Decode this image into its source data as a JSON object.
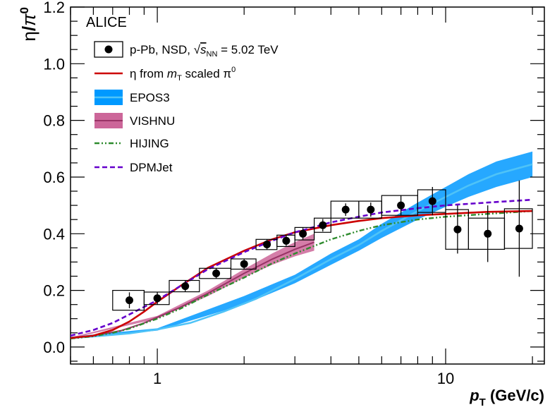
{
  "chart_data": {
    "type": "line",
    "experiment_label": "ALICE",
    "xlabel": {
      "main": "p",
      "sub": "T",
      "unit": "(GeV/c)"
    },
    "ylabel": {
      "num": "η",
      "den": "π",
      "den_sup": "0"
    },
    "x_scale": "log",
    "xlim": [
      0.5,
      22
    ],
    "ylim": [
      -0.06,
      1.2
    ],
    "x_ticks": [
      {
        "value": 1,
        "label": "1"
      },
      {
        "value": 10,
        "label": "10"
      }
    ],
    "y_ticks": [
      {
        "value": 0.0,
        "label": "0.0"
      },
      {
        "value": 0.2,
        "label": "0.2"
      },
      {
        "value": 0.4,
        "label": "0.4"
      },
      {
        "value": 0.6,
        "label": "0.6"
      },
      {
        "value": 0.8,
        "label": "0.8"
      },
      {
        "value": 1.0,
        "label": "1.0"
      },
      {
        "value": 1.2,
        "label": "1.2"
      }
    ],
    "legend": {
      "data": "p-Pb, NSD, √s_NN = 5.02 TeV",
      "data_parts": {
        "pre": "p-Pb, NSD, ",
        "s": "s",
        "sub": "NN",
        "post": " = 5.02 TeV"
      },
      "mt": "η from m_T scaled π⁰",
      "mt_parts": {
        "pre": "η from ",
        "m": "m",
        "sub": "T",
        "post": " scaled π",
        "sup": "0"
      },
      "epos": "EPOS3",
      "vishnu": "VISHNU",
      "hijing": "HIJING",
      "dpmjet": "DPMJet"
    },
    "colors": {
      "data": "#000000",
      "mt": "#cc0000",
      "epos_line": "#4fc3f7",
      "epos_band": "#0099ff",
      "vishnu_line": "#993366",
      "vishnu_band": "#cc6699",
      "hijing": "#2e8b2e",
      "dpmjet": "#6600cc"
    },
    "series": [
      {
        "key": "data",
        "name": "p-Pb, NSD, √s_NN = 5.02 TeV",
        "points": [
          {
            "x": 0.8,
            "y": 0.165,
            "stat": 0.028,
            "sys": 0.035,
            "xlo": 0.7,
            "xhi": 0.9
          },
          {
            "x": 1.0,
            "y": 0.172,
            "stat": 0.022,
            "sys": 0.022,
            "xlo": 0.9,
            "xhi": 1.1
          },
          {
            "x": 1.25,
            "y": 0.215,
            "stat": 0.02,
            "sys": 0.02,
            "xlo": 1.1,
            "xhi": 1.4
          },
          {
            "x": 1.6,
            "y": 0.26,
            "stat": 0.018,
            "sys": 0.018,
            "xlo": 1.4,
            "xhi": 1.8
          },
          {
            "x": 2.0,
            "y": 0.293,
            "stat": 0.018,
            "sys": 0.018,
            "xlo": 1.8,
            "xhi": 2.2
          },
          {
            "x": 2.4,
            "y": 0.362,
            "stat": 0.018,
            "sys": 0.018,
            "xlo": 2.2,
            "xhi": 2.6
          },
          {
            "x": 2.8,
            "y": 0.375,
            "stat": 0.018,
            "sys": 0.02,
            "xlo": 2.6,
            "xhi": 3.0
          },
          {
            "x": 3.2,
            "y": 0.4,
            "stat": 0.02,
            "sys": 0.022,
            "xlo": 3.0,
            "xhi": 3.5
          },
          {
            "x": 3.75,
            "y": 0.43,
            "stat": 0.022,
            "sys": 0.025,
            "xlo": 3.5,
            "xhi": 4.0
          },
          {
            "x": 4.5,
            "y": 0.485,
            "stat": 0.022,
            "sys": 0.03,
            "xlo": 4.0,
            "xhi": 5.0
          },
          {
            "x": 5.5,
            "y": 0.485,
            "stat": 0.025,
            "sys": 0.03,
            "xlo": 5.0,
            "xhi": 6.0
          },
          {
            "x": 7.0,
            "y": 0.5,
            "stat": 0.035,
            "sys": 0.035,
            "xlo": 6.0,
            "xhi": 8.0
          },
          {
            "x": 9.0,
            "y": 0.515,
            "stat": 0.05,
            "sys": 0.04,
            "xlo": 8.0,
            "xhi": 10.0
          },
          {
            "x": 11.0,
            "y": 0.415,
            "stat": 0.085,
            "sys": 0.07,
            "xlo": 10.0,
            "xhi": 12.0
          },
          {
            "x": 14.0,
            "y": 0.4,
            "stat": 0.1,
            "sys": 0.055,
            "xlo": 12.0,
            "xhi": 16.0
          },
          {
            "x": 18.0,
            "y": 0.418,
            "stat": 0.17,
            "sys": 0.07,
            "xlo": 16.0,
            "xhi": 20.0
          }
        ]
      },
      {
        "key": "mt",
        "name": "η from m_T scaled π⁰",
        "points": [
          [
            0.5,
            0.032
          ],
          [
            0.6,
            0.04
          ],
          [
            0.7,
            0.06
          ],
          [
            0.8,
            0.09
          ],
          [
            0.9,
            0.125
          ],
          [
            1.0,
            0.16
          ],
          [
            1.2,
            0.215
          ],
          [
            1.5,
            0.28
          ],
          [
            2.0,
            0.34
          ],
          [
            2.5,
            0.38
          ],
          [
            3.0,
            0.405
          ],
          [
            4.0,
            0.43
          ],
          [
            5.0,
            0.445
          ],
          [
            6.0,
            0.455
          ],
          [
            8.0,
            0.465
          ],
          [
            10.0,
            0.47
          ],
          [
            14.0,
            0.477
          ],
          [
            20.0,
            0.48
          ]
        ]
      },
      {
        "key": "epos",
        "name": "EPOS3",
        "points": [
          [
            0.5,
            0.032
          ],
          [
            0.6,
            0.037
          ],
          [
            0.8,
            0.048
          ],
          [
            1.0,
            0.062
          ],
          [
            1.3,
            0.085
          ],
          [
            1.7,
            0.125
          ],
          [
            2.2,
            0.17
          ],
          [
            3.0,
            0.24
          ],
          [
            4.0,
            0.31
          ],
          [
            5.0,
            0.36
          ],
          [
            6.0,
            0.41
          ],
          [
            8.0,
            0.48
          ],
          [
            10.0,
            0.53
          ],
          [
            12.0,
            0.57
          ],
          [
            15.0,
            0.61
          ],
          [
            20.0,
            0.645
          ]
        ],
        "band": [
          [
            0.5,
            0.028,
            0.036
          ],
          [
            1.0,
            0.058,
            0.066
          ],
          [
            2.0,
            0.15,
            0.18
          ],
          [
            3.0,
            0.225,
            0.255
          ],
          [
            4.0,
            0.29,
            0.33
          ],
          [
            5.0,
            0.34,
            0.38
          ],
          [
            6.0,
            0.385,
            0.435
          ],
          [
            8.0,
            0.45,
            0.51
          ],
          [
            10.0,
            0.495,
            0.565
          ],
          [
            12.0,
            0.53,
            0.61
          ],
          [
            15.0,
            0.565,
            0.655
          ],
          [
            20.0,
            0.6,
            0.69
          ]
        ]
      },
      {
        "key": "vishnu",
        "name": "VISHNU",
        "points": [
          [
            0.5,
            0.032
          ],
          [
            0.6,
            0.04
          ],
          [
            0.75,
            0.058
          ],
          [
            0.9,
            0.085
          ],
          [
            1.0,
            0.105
          ],
          [
            1.2,
            0.14
          ],
          [
            1.5,
            0.19
          ],
          [
            2.0,
            0.26
          ],
          [
            2.5,
            0.31
          ],
          [
            3.0,
            0.345
          ],
          [
            3.5,
            0.37
          ]
        ],
        "band": [
          [
            0.5,
            0.03,
            0.034
          ],
          [
            1.0,
            0.1,
            0.11
          ],
          [
            1.5,
            0.18,
            0.2
          ],
          [
            2.0,
            0.245,
            0.275
          ],
          [
            2.5,
            0.29,
            0.33
          ],
          [
            3.0,
            0.32,
            0.37
          ],
          [
            3.5,
            0.34,
            0.4
          ]
        ]
      },
      {
        "key": "hijing",
        "name": "HIJING",
        "points": [
          [
            0.5,
            0.03
          ],
          [
            0.6,
            0.038
          ],
          [
            0.7,
            0.05
          ],
          [
            0.8,
            0.065
          ],
          [
            1.0,
            0.1
          ],
          [
            1.2,
            0.135
          ],
          [
            1.5,
            0.185
          ],
          [
            2.0,
            0.245
          ],
          [
            2.5,
            0.295
          ],
          [
            3.0,
            0.33
          ],
          [
            4.0,
            0.38
          ],
          [
            5.0,
            0.41
          ],
          [
            6.0,
            0.43
          ],
          [
            8.0,
            0.45
          ],
          [
            10.0,
            0.46
          ],
          [
            14.0,
            0.47
          ],
          [
            20.0,
            0.48
          ]
        ]
      },
      {
        "key": "dpmjet",
        "name": "DPMJet",
        "points": [
          [
            0.5,
            0.04
          ],
          [
            0.6,
            0.06
          ],
          [
            0.7,
            0.085
          ],
          [
            0.8,
            0.115
          ],
          [
            1.0,
            0.165
          ],
          [
            1.2,
            0.215
          ],
          [
            1.5,
            0.275
          ],
          [
            2.0,
            0.335
          ],
          [
            2.5,
            0.375
          ],
          [
            3.0,
            0.405
          ],
          [
            4.0,
            0.44
          ],
          [
            5.0,
            0.46
          ],
          [
            6.0,
            0.475
          ],
          [
            8.0,
            0.49
          ],
          [
            10.0,
            0.5
          ],
          [
            14.0,
            0.51
          ],
          [
            20.0,
            0.52
          ]
        ]
      }
    ]
  }
}
